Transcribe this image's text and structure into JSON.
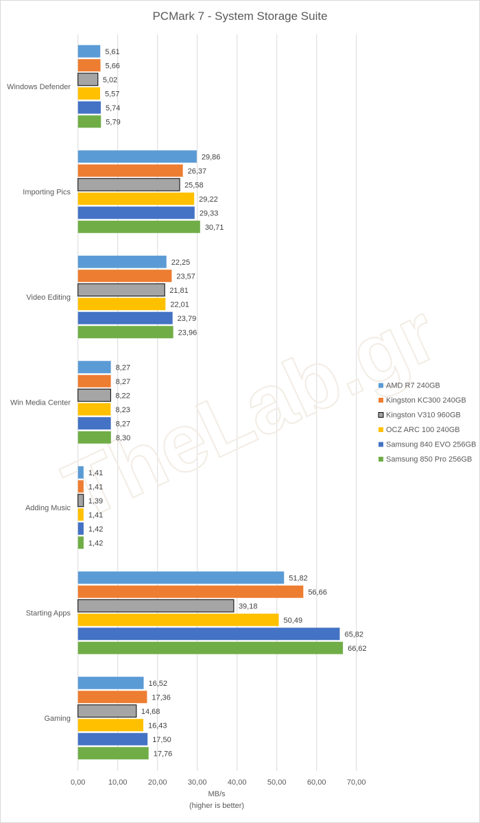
{
  "chart_data": {
    "type": "bar",
    "orientation": "horizontal",
    "title": "PCMark 7 - System Storage Suite",
    "xlabel": "MB/s",
    "xlabel_note": "(higher is better)",
    "ylabel": "",
    "xlim": [
      0,
      70
    ],
    "xticks": [
      "0,00",
      "10,00",
      "20,00",
      "30,00",
      "40,00",
      "50,00",
      "60,00",
      "70,00"
    ],
    "grid": true,
    "legend_position": "right",
    "watermark": "TheLab.gr",
    "categories": [
      "Windows Defender",
      "Importing Pics",
      "Video Editing",
      "Win Media Center",
      "Adding Music",
      "Starting Apps",
      "Gaming"
    ],
    "series": [
      {
        "name": "AMD R7 240GB",
        "color": "#5b9bd5",
        "outline": false,
        "values": [
          5.61,
          29.86,
          22.25,
          8.27,
          1.41,
          51.82,
          16.52
        ],
        "labels": [
          "5,61",
          "29,86",
          "22,25",
          "8,27",
          "1,41",
          "51,82",
          "16,52"
        ]
      },
      {
        "name": "Kingston KC300 240GB",
        "color": "#ed7d31",
        "outline": false,
        "values": [
          5.66,
          26.37,
          23.57,
          8.27,
          1.41,
          56.66,
          17.36
        ],
        "labels": [
          "5,66",
          "26,37",
          "23,57",
          "8,27",
          "1,41",
          "56,66",
          "17,36"
        ]
      },
      {
        "name": "Kingston V310 960GB",
        "color": "#a5a5a5",
        "outline": true,
        "values": [
          5.02,
          25.58,
          21.81,
          8.22,
          1.39,
          39.18,
          14.68
        ],
        "labels": [
          "5,02",
          "25,58",
          "21,81",
          "8,22",
          "1,39",
          "39,18",
          "14,68"
        ]
      },
      {
        "name": "OCZ ARC 100 240GB",
        "color": "#ffc000",
        "outline": false,
        "values": [
          5.57,
          29.22,
          22.01,
          8.23,
          1.41,
          50.49,
          16.43
        ],
        "labels": [
          "5,57",
          "29,22",
          "22,01",
          "8,23",
          "1,41",
          "50,49",
          "16,43"
        ]
      },
      {
        "name": "Samsung 840 EVO 256GB",
        "color": "#4472c4",
        "outline": false,
        "values": [
          5.74,
          29.33,
          23.79,
          8.27,
          1.42,
          65.82,
          17.5
        ],
        "labels": [
          "5,74",
          "29,33",
          "23,79",
          "8,27",
          "1,42",
          "65,82",
          "17,50"
        ]
      },
      {
        "name": "Samsung 850 Pro 256GB",
        "color": "#70ad47",
        "outline": false,
        "values": [
          5.79,
          30.71,
          23.96,
          8.3,
          1.42,
          66.62,
          17.76
        ],
        "labels": [
          "5,79",
          "30,71",
          "23,96",
          "8,30",
          "1,42",
          "66,62",
          "17,76"
        ]
      }
    ]
  }
}
